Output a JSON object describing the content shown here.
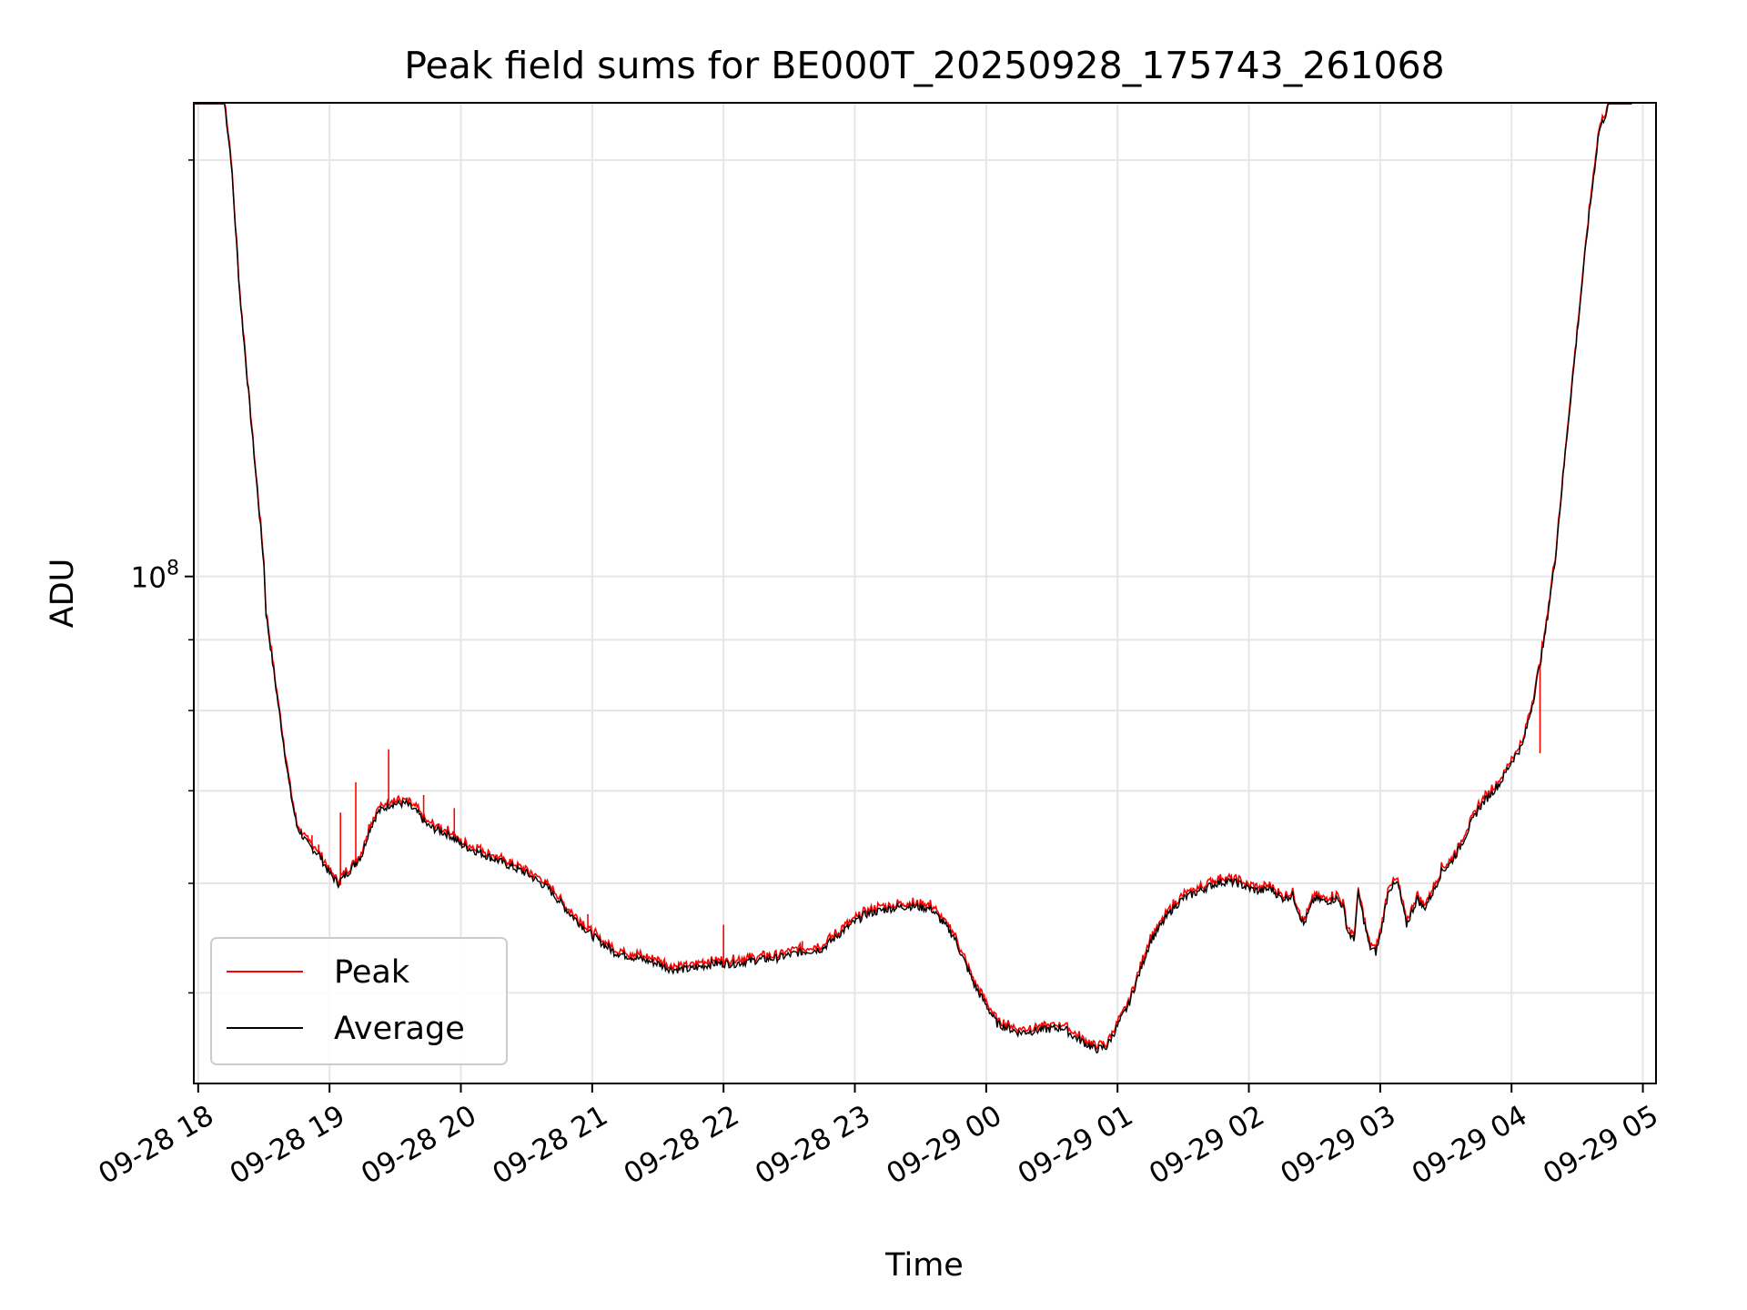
{
  "chart_data": {
    "type": "line",
    "title": "Peak field sums for BE000T_20250928_175743_261068",
    "xlabel": "Time",
    "ylabel": "ADU",
    "y_scale": "log",
    "ylim": [
      43000000.0,
      220000000.0
    ],
    "y_tick_major": {
      "value": 100000000.0,
      "base": "10",
      "exponent": "8"
    },
    "y_minor_ticks": [
      50000000.0,
      60000000.0,
      70000000.0,
      80000000.0,
      90000000.0,
      200000000.0
    ],
    "x_ticks": [
      "09-28 18",
      "09-28 19",
      "09-28 20",
      "09-28 21",
      "09-28 22",
      "09-28 23",
      "09-29 00",
      "09-29 01",
      "09-29 02",
      "09-29 03",
      "09-29 04",
      "09-29 05"
    ],
    "x_range": [
      "2025-09-28 17:58",
      "2025-09-29 05:06"
    ],
    "grid": true,
    "legend_position": "lower-left",
    "colors": {
      "peak": "#ff0000",
      "average": "#000000",
      "grid": "#e6e6e6"
    },
    "series": [
      {
        "name": "Average",
        "x": [
          "2025-09-28 17:58",
          "2025-09-28 18:12",
          "2025-09-28 18:15",
          "2025-09-28 18:19",
          "2025-09-28 18:25",
          "2025-09-28 18:30",
          "2025-09-28 18:31",
          "2025-09-28 18:36",
          "2025-09-28 18:42",
          "2025-09-28 18:45",
          "2025-09-28 18:50",
          "2025-09-28 18:55",
          "2025-09-28 19:00",
          "2025-09-28 19:04",
          "2025-09-28 19:06",
          "2025-09-28 19:10",
          "2025-09-28 19:15",
          "2025-09-28 19:18",
          "2025-09-28 19:22",
          "2025-09-28 19:28",
          "2025-09-28 19:35",
          "2025-09-28 19:40",
          "2025-09-28 19:45",
          "2025-09-28 19:50",
          "2025-09-28 19:55",
          "2025-09-28 20:00",
          "2025-09-28 20:10",
          "2025-09-28 20:20",
          "2025-09-28 20:30",
          "2025-09-28 20:40",
          "2025-09-28 20:50",
          "2025-09-28 20:55",
          "2025-09-28 21:00",
          "2025-09-28 21:10",
          "2025-09-28 21:20",
          "2025-09-28 21:30",
          "2025-09-28 21:36",
          "2025-09-28 21:45",
          "2025-09-28 21:55",
          "2025-09-28 22:05",
          "2025-09-28 22:15",
          "2025-09-28 22:25",
          "2025-09-28 22:35",
          "2025-09-28 22:45",
          "2025-09-28 22:55",
          "2025-09-28 23:05",
          "2025-09-28 23:15",
          "2025-09-28 23:25",
          "2025-09-28 23:35",
          "2025-09-28 23:45",
          "2025-09-28 23:55",
          "2025-09-29 00:05",
          "2025-09-29 00:15",
          "2025-09-29 00:25",
          "2025-09-29 00:35",
          "2025-09-29 00:40",
          "2025-09-29 00:45",
          "2025-09-29 00:50",
          "2025-09-29 00:55",
          "2025-09-29 01:05",
          "2025-09-29 01:15",
          "2025-09-29 01:25",
          "2025-09-29 01:30",
          "2025-09-29 01:35",
          "2025-09-29 01:40",
          "2025-09-29 01:45",
          "2025-09-29 01:50",
          "2025-09-29 01:55",
          "2025-09-29 02:00",
          "2025-09-29 02:05",
          "2025-09-29 02:10",
          "2025-09-29 02:15",
          "2025-09-29 02:20",
          "2025-09-29 02:25",
          "2025-09-29 02:30",
          "2025-09-29 02:35",
          "2025-09-29 02:40",
          "2025-09-29 02:43",
          "2025-09-29 02:45",
          "2025-09-29 02:48",
          "2025-09-29 02:50",
          "2025-09-29 02:53",
          "2025-09-29 02:55",
          "2025-09-29 02:58",
          "2025-09-29 03:00",
          "2025-09-29 03:04",
          "2025-09-29 03:08",
          "2025-09-29 03:12",
          "2025-09-29 03:17",
          "2025-09-29 03:20",
          "2025-09-29 03:25",
          "2025-09-29 03:28",
          "2025-09-29 03:32",
          "2025-09-29 03:36",
          "2025-09-29 03:40",
          "2025-09-29 03:45",
          "2025-09-29 03:50",
          "2025-09-29 03:55",
          "2025-09-29 04:00",
          "2025-09-29 04:05",
          "2025-09-29 04:10",
          "2025-09-29 04:15",
          "2025-09-29 04:20",
          "2025-09-29 04:25",
          "2025-09-29 04:30",
          "2025-09-29 04:35",
          "2025-09-29 04:40",
          "2025-09-29 04:45",
          "2025-09-29 04:50",
          "2025-09-29 04:55"
        ],
        "y": [
          220000000.0,
          220000000.0,
          200000000.0,
          160000000.0,
          125000000.0,
          102000000.0,
          94000000.0,
          82000000.0,
          70000000.0,
          66000000.0,
          64000000.0,
          63000000.0,
          61000000.0,
          60000000.0,
          60500000.0,
          61500000.0,
          63000000.0,
          65500000.0,
          67500000.0,
          68500000.0,
          68500000.0,
          67500000.0,
          66000000.0,
          65500000.0,
          65000000.0,
          64000000.0,
          63000000.0,
          62000000.0,
          61000000.0,
          59500000.0,
          57000000.0,
          56000000.0,
          55000000.0,
          53500000.0,
          53000000.0,
          52500000.0,
          52000000.0,
          52000000.0,
          52500000.0,
          52500000.0,
          52800000.0,
          53000000.0,
          53500000.0,
          53800000.0,
          55500000.0,
          57000000.0,
          57500000.0,
          57800000.0,
          57500000.0,
          55000000.0,
          50500000.0,
          47500000.0,
          46800000.0,
          47000000.0,
          47200000.0,
          46500000.0,
          46000000.0,
          45500000.0,
          45700000.0,
          49000000.0,
          54500000.0,
          57500000.0,
          58500000.0,
          59000000.0,
          59500000.0,
          60000000.0,
          60200000.0,
          60000000.0,
          59500000.0,
          59200000.0,
          59500000.0,
          58500000.0,
          58800000.0,
          56000000.0,
          58500000.0,
          58200000.0,
          58500000.0,
          57800000.0,
          55500000.0,
          54500000.0,
          59000000.0,
          56000000.0,
          54000000.0,
          53500000.0,
          55000000.0,
          59500000.0,
          60000000.0,
          56000000.0,
          58500000.0,
          57500000.0,
          59500000.0,
          61200000.0,
          62000000.0,
          63500000.0,
          65500000.0,
          68000000.0,
          69500000.0,
          71000000.0,
          73500000.0,
          75500000.0,
          81500000.0,
          90000000.0,
          103000000.0,
          125000000.0,
          150000000.0,
          180000000.0,
          210000000.0,
          220000000.0,
          220000000.0,
          220000000.0
        ]
      },
      {
        "name": "Peak",
        "note_spikes": true,
        "spikes": [
          {
            "x": "2025-09-28 18:48",
            "y": 64500000.0
          },
          {
            "x": "2025-09-28 18:52",
            "y": 65000000.0
          },
          {
            "x": "2025-09-28 18:55",
            "y": 64000000.0
          },
          {
            "x": "2025-09-28 19:05",
            "y": 67500000.0
          },
          {
            "x": "2025-09-28 19:12",
            "y": 71000000.0
          },
          {
            "x": "2025-09-28 19:27",
            "y": 75000000.0
          },
          {
            "x": "2025-09-28 19:43",
            "y": 69500000.0
          },
          {
            "x": "2025-09-28 19:57",
            "y": 68000000.0
          },
          {
            "x": "2025-09-28 20:58",
            "y": 57000000.0
          },
          {
            "x": "2025-09-28 22:00",
            "y": 56000000.0
          },
          {
            "x": "2025-09-28 22:36",
            "y": 54500000.0
          },
          {
            "x": "2025-09-29 04:13",
            "y": 74500000.0
          }
        ]
      }
    ]
  }
}
